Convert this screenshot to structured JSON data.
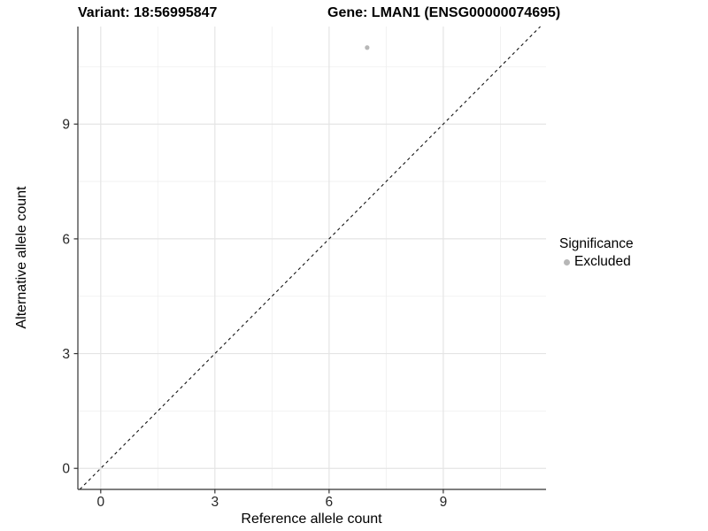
{
  "title": {
    "variant": "Variant: 18:56995847",
    "gene": "Gene: LMAN1 (ENSG00000074695)"
  },
  "axes": {
    "x": {
      "label": "Reference allele count"
    },
    "y": {
      "label": "Alternative allele count"
    }
  },
  "legend": {
    "title": "Significance",
    "items": [
      {
        "label": "Excluded",
        "color": "#b7b7b7"
      }
    ]
  },
  "chart_data": {
    "type": "scatter",
    "title": "Variant: 18:56995847    Gene: LMAN1 (ENSG00000074695)",
    "xlabel": "Reference allele count",
    "ylabel": "Alternative allele count",
    "xlim": [
      -0.6,
      11.7
    ],
    "ylim": [
      -0.55,
      11.55
    ],
    "x_ticks": [
      0,
      3,
      6,
      9
    ],
    "y_ticks": [
      0,
      3,
      6,
      9
    ],
    "x_minor": [
      1.5,
      4.5,
      7.5,
      10.5
    ],
    "y_minor": [
      1.5,
      4.5,
      7.5,
      10.5
    ],
    "grid": "major+minor",
    "legend_position": "right",
    "series": [
      {
        "name": "Excluded",
        "color": "#b7b7b7",
        "points": [
          {
            "x": 7,
            "y": 11
          }
        ]
      }
    ],
    "reference_line": {
      "type": "identity y=x",
      "style": "dashed",
      "color": "#141414"
    },
    "colors": {
      "grid_major": "#e4e4e4",
      "grid_minor": "#efefef",
      "axis_line": "#333333",
      "tick_label": "#262626",
      "point": "#b7b7b7"
    }
  }
}
